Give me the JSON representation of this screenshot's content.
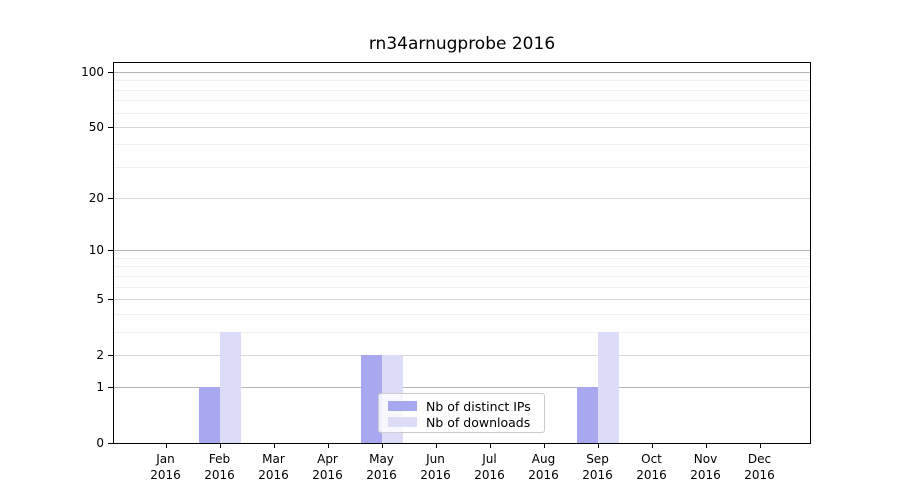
{
  "title": "rn34arnugprobe 2016",
  "legend": {
    "items": [
      {
        "label": "Nb of distinct IPs",
        "color": "#a8a8f0"
      },
      {
        "label": "Nb of downloads",
        "color": "#dcdcf8"
      }
    ]
  },
  "axes": {
    "y_tick_labels": [
      "0",
      "1",
      "2",
      "5",
      "10",
      "20",
      "50",
      "100"
    ],
    "x_tick_labels": [
      "Jan 2016",
      "Feb 2016",
      "Mar 2016",
      "Apr 2016",
      "May 2016",
      "Jun 2016",
      "Jul 2016",
      "Aug 2016",
      "Sep 2016",
      "Oct 2016",
      "Nov 2016",
      "Dec 2016"
    ]
  },
  "chart_data": {
    "type": "bar",
    "title": "rn34arnugprobe 2016",
    "categories": [
      "Jan 2016",
      "Feb 2016",
      "Mar 2016",
      "Apr 2016",
      "May 2016",
      "Jun 2016",
      "Jul 2016",
      "Aug 2016",
      "Sep 2016",
      "Oct 2016",
      "Nov 2016",
      "Dec 2016"
    ],
    "series": [
      {
        "name": "Nb of distinct IPs",
        "color": "#a8a8f0",
        "values": [
          0,
          1,
          0,
          0,
          2,
          0,
          0,
          0,
          1,
          0,
          0,
          0
        ]
      },
      {
        "name": "Nb of downloads",
        "color": "#dcdcf8",
        "values": [
          0,
          3,
          0,
          0,
          2,
          0,
          0,
          0,
          3,
          0,
          0,
          0
        ]
      }
    ],
    "xlabel": "",
    "ylabel": "",
    "yscale": "log1p",
    "ylim": [
      0,
      113
    ],
    "yticks": [
      0,
      1,
      2,
      5,
      10,
      20,
      50,
      100
    ],
    "minor_gridlines": [
      3,
      4,
      6,
      7,
      8,
      9,
      30,
      40,
      60,
      70,
      80,
      90
    ],
    "grid": "horizontal",
    "legend_position": "lower center"
  }
}
